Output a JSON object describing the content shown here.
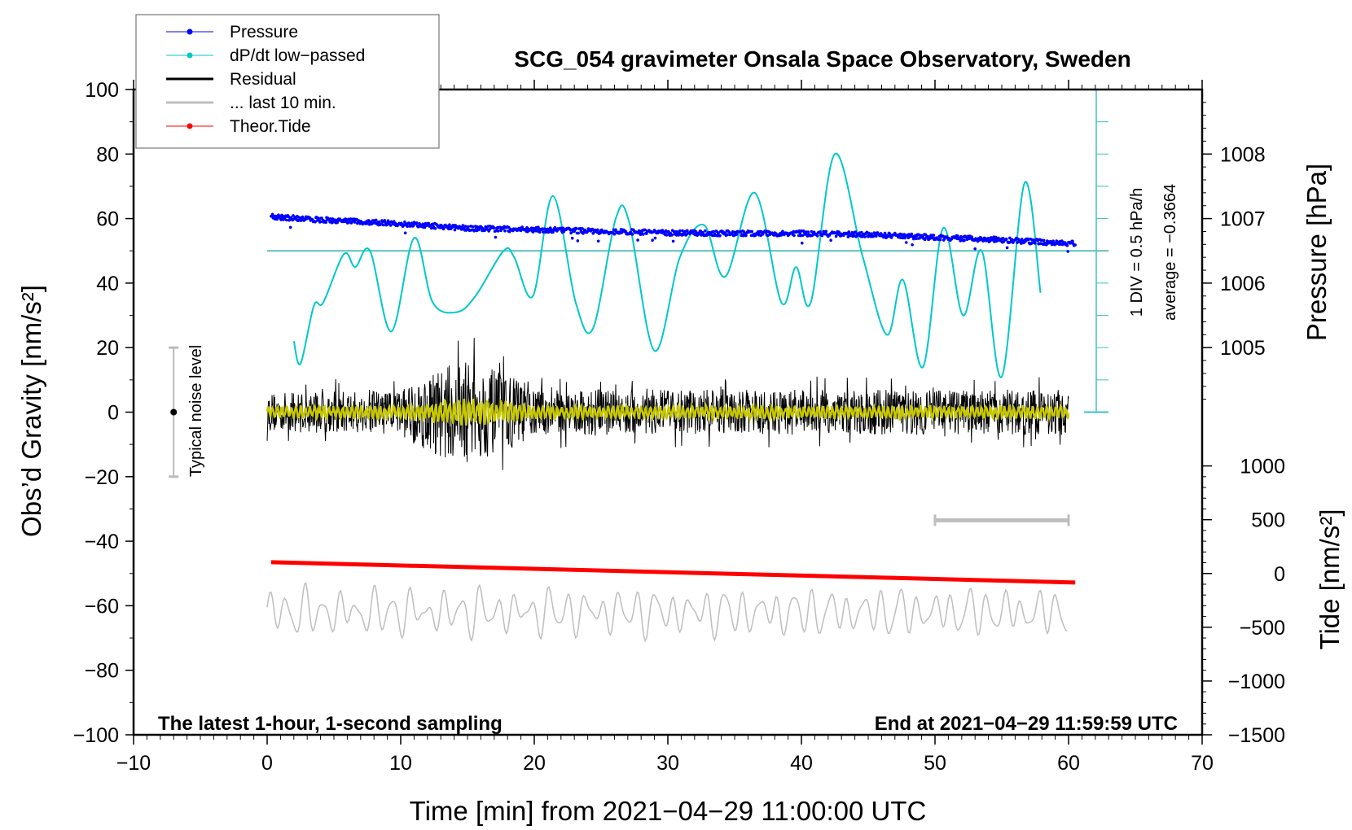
{
  "chart_data": {
    "type": "line",
    "title": "SCG_054 gravimeter Onsala Space Observatory, Sweden",
    "xlabel": "Time [min] from 2021−04−29 11:00:00 UTC",
    "ylabel": "Obs’d Gravity [nm/s²]",
    "y2label": "Pressure [hPa]",
    "y3label": "Tide [nm/s²]",
    "xlim": [
      -10,
      70
    ],
    "ylim": [
      -100,
      100
    ],
    "xticks": [
      -10,
      0,
      10,
      20,
      30,
      40,
      50,
      60,
      70
    ],
    "xtick_labels": [
      "−10",
      "0",
      "10",
      "20",
      "30",
      "40",
      "50",
      "60",
      "70"
    ],
    "yticks": [
      100,
      80,
      60,
      40,
      20,
      0,
      -20,
      -40,
      -60,
      -80,
      -100
    ],
    "ytick_labels": [
      "100",
      "80",
      "60",
      "40",
      "20",
      "0",
      "−20",
      "−40",
      "−60",
      "−80",
      "−100"
    ],
    "pressure_axis": {
      "ticks": [
        1008,
        1007,
        1006,
        1005
      ],
      "labels": [
        "1008",
        "1007",
        "1006",
        "1005"
      ],
      "gravity_at_1004": 0,
      "hpa_per_gravity_unit": 0.05
    },
    "tide_axis": {
      "ticks": [
        1000,
        500,
        0,
        -500,
        -1000,
        -1500
      ],
      "labels": [
        "1000",
        "500",
        "0",
        "−500",
        "−1000",
        "−1500"
      ],
      "gravity_at_zero": -50,
      "tide_per_gravity_unit": 30
    },
    "legend": {
      "placement": "top-left",
      "items": [
        {
          "label": "Pressure",
          "color": "#0000ff",
          "style": "line-dot"
        },
        {
          "label": "dP/dt low−passed",
          "color": "#00c8c8",
          "style": "line-dot"
        },
        {
          "label": "Residual",
          "color": "#000000",
          "style": "line"
        },
        {
          "label": "... last 10 min.",
          "color": "#bebebe",
          "style": "line"
        },
        {
          "label": "Theor.Tide",
          "color": "#ff0000",
          "style": "line-dot"
        }
      ]
    },
    "series": [
      {
        "name": "Pressure",
        "unit": "hPa",
        "color": "#0000ff",
        "x": [
          0.3,
          5,
          10,
          15,
          20,
          25,
          30,
          35,
          40,
          45,
          50,
          55,
          60.5
        ],
        "y": [
          1007.03,
          1006.97,
          1006.92,
          1006.85,
          1006.83,
          1006.8,
          1006.78,
          1006.77,
          1006.77,
          1006.75,
          1006.71,
          1006.67,
          1006.61
        ]
      },
      {
        "name": "dP/dt low-passed",
        "unit": "gravity-plot units",
        "color": "#00c8c8",
        "x": [
          2.0,
          2.5,
          3.5,
          4.2,
          5.75,
          6.6,
          7.7,
          9.3,
          11.0,
          12.4,
          14.2,
          15.6,
          17.7,
          18.5,
          19.9,
          21.4,
          23.1,
          24.4,
          26.1,
          27.1,
          29.0,
          30.9,
          32.7,
          34.3,
          36.5,
          38.5,
          39.6,
          40.7,
          42.5,
          44.6,
          46.4,
          47.6,
          49.1,
          50.6,
          52.1,
          53.5,
          55.0,
          56.7,
          57.9
        ],
        "y": [
          22,
          15,
          33,
          34,
          49,
          45,
          50,
          25,
          54,
          34,
          31,
          36,
          50,
          48,
          36,
          67,
          34,
          26,
          60,
          59,
          19,
          48,
          58,
          42,
          68,
          34,
          45,
          34,
          80,
          48,
          24,
          41,
          14,
          57,
          30,
          50,
          11,
          71,
          37
        ]
      },
      {
        "name": "Residual",
        "color": "#000000",
        "envelope_x": [
          0,
          10,
          11,
          13,
          15,
          17,
          19,
          20,
          60
        ],
        "envelope_amp": [
          6,
          7,
          10,
          14,
          16,
          13,
          10,
          7,
          7
        ]
      },
      {
        "name": "Residual low-passed",
        "color": "#c8c800",
        "envelope_x": [
          0,
          10,
          12,
          15,
          19,
          20,
          60
        ],
        "envelope_amp": [
          2,
          2,
          3,
          4,
          3,
          2,
          2
        ]
      },
      {
        "name": "... last 10 min.",
        "color": "#bebebe",
        "center": -62,
        "amp": 8
      },
      {
        "name": "Theor.Tide",
        "unit": "nm/s²",
        "color": "#ff0000",
        "x": [
          0.3,
          60.5
        ],
        "y": [
          105,
          -84
        ]
      }
    ],
    "reference_line": {
      "value": 50,
      "color": "#5fbfbf"
    },
    "dpdt_scale": {
      "label": "1 DIV = 0.5 hPa/h",
      "average_label": "average = −0.3664",
      "range": [
        0,
        100
      ],
      "div": 10
    },
    "noise_bar": {
      "label": "Typical noise level",
      "range": [
        -20,
        20
      ],
      "center": 0,
      "x": -7
    },
    "last10_bar": {
      "x": [
        50,
        60
      ],
      "y": -33.5
    },
    "footer_left": "The latest 1-hour, 1-second sampling",
    "footer_right": "End at 2021−04−29 11:59:59 UTC"
  }
}
